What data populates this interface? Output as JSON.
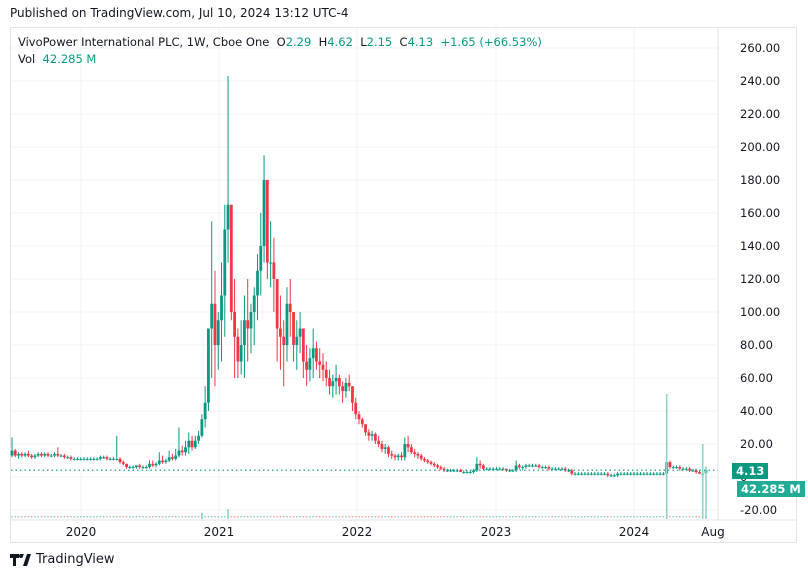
{
  "header": {
    "published": "Published on TradingView.com, Jul 10, 2024 13:12 UTC-4"
  },
  "legend": {
    "symbol": "VivoPower International PLC, 1W, Cboe One",
    "open_label": "O",
    "open": "2.29",
    "high_label": "H",
    "high": "4.62",
    "low_label": "L",
    "low": "2.15",
    "close_label": "C",
    "close": "4.13",
    "change": "+1.65 (+66.53%)",
    "vol_label": "Vol",
    "vol": "42.285 M"
  },
  "price_axis": {
    "labels": [
      "260.00",
      "240.00",
      "220.00",
      "200.00",
      "180.00",
      "160.00",
      "140.00",
      "120.00",
      "100.00",
      "80.00",
      "60.00",
      "40.00",
      "20.00",
      "0",
      "-20.00"
    ],
    "last_price_badge": "4.13",
    "volume_badge": "42.285 M"
  },
  "time_axis": {
    "labels": [
      "2020",
      "2021",
      "2022",
      "2023",
      "2024",
      "Aug"
    ]
  },
  "colors": {
    "up": "#089981",
    "down": "#f23645",
    "volume_up": "#8fd3c8",
    "volume_down": "#f7a9a7",
    "grid": "#f0f3fa",
    "last_price_line": "#089981",
    "volume_badge": "#22ab94"
  },
  "brand": {
    "name": "TradingView"
  },
  "chart_data": {
    "type": "candlestick",
    "title": "VivoPower International PLC, 1W, Cboe One",
    "interval": "1W",
    "xlabel": "",
    "ylabel": "Price",
    "ylim": [
      -20,
      265
    ],
    "yticks": [
      260,
      240,
      220,
      200,
      180,
      160,
      140,
      120,
      100,
      80,
      60,
      40,
      20,
      0,
      -20
    ],
    "xticks": [
      "2020",
      "2021",
      "2022",
      "2023",
      "2024",
      "Aug"
    ],
    "grid": true,
    "last": {
      "open": 2.29,
      "high": 4.62,
      "low": 2.15,
      "close": 4.13,
      "change": 1.65,
      "change_pct": 66.53,
      "volume": "42.285M"
    },
    "series_note": "approximate weekly OHLC read from the chart; x = weeks from start (mid 2019)",
    "candles": [
      [
        13,
        24,
        12,
        16
      ],
      [
        16,
        17,
        12,
        13
      ],
      [
        13,
        15,
        11,
        14
      ],
      [
        14,
        15,
        12,
        13
      ],
      [
        13,
        15,
        12,
        14
      ],
      [
        14,
        16,
        12,
        13
      ],
      [
        13,
        14,
        11,
        12
      ],
      [
        12,
        14,
        11,
        13
      ],
      [
        13,
        15,
        12,
        14
      ],
      [
        14,
        15,
        12,
        13
      ],
      [
        13,
        15,
        12,
        14
      ],
      [
        14,
        15,
        12,
        13
      ],
      [
        13,
        14,
        12,
        13
      ],
      [
        13,
        15,
        12,
        14
      ],
      [
        14,
        18,
        12,
        13
      ],
      [
        13,
        14,
        12,
        13
      ],
      [
        13,
        14,
        11,
        12
      ],
      [
        12,
        13,
        11,
        12
      ],
      [
        12,
        13,
        10,
        11
      ],
      [
        11,
        12,
        10,
        11
      ],
      [
        11,
        12,
        10,
        11
      ],
      [
        11,
        12,
        10,
        11
      ],
      [
        11,
        12,
        10,
        11
      ],
      [
        11,
        12,
        10,
        11
      ],
      [
        11,
        12,
        10,
        11
      ],
      [
        11,
        12,
        10,
        11
      ],
      [
        11,
        12,
        10,
        11
      ],
      [
        11,
        13,
        10,
        12
      ],
      [
        12,
        13,
        11,
        12
      ],
      [
        12,
        13,
        10,
        11
      ],
      [
        11,
        12,
        10,
        11
      ],
      [
        11,
        12,
        10,
        11
      ],
      [
        11,
        25,
        10,
        11
      ],
      [
        11,
        12,
        8,
        9
      ],
      [
        9,
        10,
        7,
        8
      ],
      [
        8,
        8,
        5,
        6
      ],
      [
        6,
        7,
        5,
        6
      ],
      [
        6,
        7,
        5,
        6
      ],
      [
        6,
        7,
        5,
        7
      ],
      [
        7,
        8,
        5,
        6
      ],
      [
        6,
        7,
        5,
        6
      ],
      [
        6,
        7,
        5,
        6
      ],
      [
        6,
        10,
        5,
        8
      ],
      [
        8,
        10,
        6,
        7
      ],
      [
        7,
        9,
        6,
        8
      ],
      [
        8,
        15,
        7,
        10
      ],
      [
        10,
        13,
        8,
        9
      ],
      [
        9,
        11,
        8,
        10
      ],
      [
        10,
        16,
        9,
        12
      ],
      [
        12,
        14,
        10,
        11
      ],
      [
        11,
        17,
        10,
        13
      ],
      [
        13,
        30,
        12,
        16
      ],
      [
        16,
        19,
        13,
        15
      ],
      [
        15,
        22,
        13,
        18
      ],
      [
        18,
        27,
        14,
        22
      ],
      [
        22,
        25,
        16,
        18
      ],
      [
        18,
        25,
        17,
        22
      ],
      [
        22,
        28,
        20,
        25
      ],
      [
        25,
        38,
        24,
        35
      ],
      [
        35,
        55,
        30,
        45
      ],
      [
        45,
        85,
        40,
        90
      ],
      [
        90,
        155,
        60,
        105
      ],
      [
        105,
        125,
        55,
        80
      ],
      [
        80,
        100,
        65,
        95
      ],
      [
        95,
        130,
        70,
        110
      ],
      [
        110,
        165,
        85,
        150
      ],
      [
        150,
        243,
        130,
        165
      ],
      [
        165,
        160,
        95,
        100
      ],
      [
        100,
        120,
        60,
        85
      ],
      [
        85,
        90,
        60,
        70
      ],
      [
        70,
        95,
        62,
        80
      ],
      [
        80,
        110,
        60,
        95
      ],
      [
        95,
        120,
        70,
        90
      ],
      [
        90,
        105,
        75,
        100
      ],
      [
        100,
        115,
        80,
        110
      ],
      [
        110,
        135,
        95,
        125
      ],
      [
        125,
        160,
        110,
        140
      ],
      [
        140,
        195,
        130,
        180
      ],
      [
        180,
        170,
        120,
        130
      ],
      [
        130,
        155,
        115,
        130
      ],
      [
        130,
        145,
        100,
        120
      ],
      [
        120,
        115,
        70,
        90
      ],
      [
        90,
        110,
        65,
        85
      ],
      [
        85,
        95,
        55,
        80
      ],
      [
        80,
        115,
        70,
        105
      ],
      [
        105,
        120,
        85,
        100
      ],
      [
        100,
        90,
        70,
        80
      ],
      [
        80,
        95,
        65,
        85
      ],
      [
        85,
        100,
        75,
        90
      ],
      [
        90,
        85,
        60,
        70
      ],
      [
        70,
        80,
        55,
        65
      ],
      [
        65,
        78,
        58,
        72
      ],
      [
        72,
        90,
        60,
        78
      ],
      [
        78,
        82,
        65,
        70
      ],
      [
        70,
        78,
        60,
        68
      ],
      [
        68,
        75,
        58,
        65
      ],
      [
        65,
        70,
        55,
        60
      ],
      [
        60,
        65,
        50,
        55
      ],
      [
        55,
        62,
        48,
        58
      ],
      [
        58,
        68,
        50,
        60
      ],
      [
        60,
        62,
        50,
        55
      ],
      [
        55,
        58,
        45,
        52
      ],
      [
        52,
        60,
        48,
        57
      ],
      [
        57,
        62,
        52,
        55
      ],
      [
        55,
        55,
        40,
        45
      ],
      [
        45,
        48,
        35,
        38
      ],
      [
        38,
        40,
        32,
        35
      ],
      [
        35,
        36,
        30,
        32
      ],
      [
        32,
        30,
        25,
        27
      ],
      [
        27,
        29,
        22,
        25
      ],
      [
        25,
        28,
        22,
        26
      ],
      [
        26,
        27,
        20,
        22
      ],
      [
        22,
        25,
        18,
        20
      ],
      [
        20,
        22,
        15,
        17
      ],
      [
        17,
        20,
        14,
        18
      ],
      [
        18,
        19,
        12,
        14
      ],
      [
        14,
        16,
        11,
        13
      ],
      [
        13,
        14,
        10,
        12
      ],
      [
        12,
        14,
        10,
        13
      ],
      [
        13,
        15,
        10,
        12
      ],
      [
        12,
        24,
        10,
        20
      ],
      [
        20,
        25,
        15,
        18
      ],
      [
        18,
        20,
        14,
        15
      ],
      [
        15,
        17,
        12,
        14
      ],
      [
        14,
        15,
        11,
        13
      ],
      [
        13,
        14,
        10,
        11
      ],
      [
        11,
        12,
        9,
        10
      ],
      [
        10,
        11,
        8,
        9
      ],
      [
        9,
        10,
        7,
        8
      ],
      [
        8,
        9,
        6,
        7
      ],
      [
        7,
        8,
        5,
        6
      ],
      [
        6,
        7,
        4,
        5
      ],
      [
        5,
        6,
        3,
        4
      ],
      [
        4,
        5,
        3,
        4
      ],
      [
        4,
        5,
        3,
        4
      ],
      [
        4,
        5,
        3,
        4
      ],
      [
        4,
        5,
        3,
        4
      ],
      [
        4,
        5,
        3,
        3
      ],
      [
        3,
        4,
        2,
        3
      ],
      [
        3,
        4,
        2,
        3
      ],
      [
        3,
        4,
        2,
        3
      ],
      [
        3,
        5,
        2,
        4
      ],
      [
        4,
        12,
        3,
        8
      ],
      [
        8,
        10,
        5,
        7
      ],
      [
        7,
        8,
        4,
        5
      ],
      [
        5,
        6,
        4,
        5
      ],
      [
        5,
        6,
        4,
        5
      ],
      [
        5,
        6,
        4,
        5
      ],
      [
        5,
        6,
        4,
        5
      ],
      [
        5,
        6,
        4,
        5
      ],
      [
        5,
        6,
        4,
        5
      ],
      [
        5,
        5,
        3,
        4
      ],
      [
        4,
        5,
        3,
        4
      ],
      [
        4,
        5,
        3,
        4
      ],
      [
        4,
        10,
        3,
        7
      ],
      [
        7,
        8,
        5,
        6
      ],
      [
        6,
        7,
        4,
        6
      ],
      [
        6,
        8,
        5,
        7
      ],
      [
        7,
        8,
        6,
        7
      ],
      [
        7,
        8,
        6,
        7
      ],
      [
        7,
        8,
        6,
        7
      ],
      [
        7,
        8,
        5,
        6
      ],
      [
        6,
        7,
        5,
        6
      ],
      [
        6,
        7,
        5,
        6
      ],
      [
        6,
        7,
        4,
        5
      ],
      [
        5,
        6,
        4,
        5
      ],
      [
        5,
        6,
        4,
        5
      ],
      [
        5,
        6,
        4,
        5
      ],
      [
        5,
        6,
        4,
        5
      ],
      [
        5,
        6,
        3,
        4
      ],
      [
        4,
        5,
        3,
        4
      ],
      [
        4,
        5,
        1,
        2
      ],
      [
        2,
        3,
        1,
        2
      ],
      [
        2,
        3,
        1,
        2
      ],
      [
        2,
        3,
        1,
        2
      ],
      [
        2,
        3,
        1,
        2
      ],
      [
        2,
        3,
        1,
        2
      ],
      [
        2,
        3,
        1,
        2
      ],
      [
        2,
        3,
        1,
        2
      ],
      [
        2,
        3,
        1,
        2
      ],
      [
        2,
        3,
        1,
        2
      ],
      [
        2,
        3,
        1,
        2
      ],
      [
        2,
        3,
        0,
        1
      ],
      [
        1,
        2,
        0,
        1
      ],
      [
        1,
        2,
        0,
        1
      ],
      [
        1,
        3,
        0,
        2
      ],
      [
        2,
        3,
        1,
        2
      ],
      [
        2,
        3,
        1,
        2
      ],
      [
        2,
        3,
        1,
        2
      ],
      [
        2,
        3,
        1,
        2
      ],
      [
        2,
        3,
        1,
        2
      ],
      [
        2,
        3,
        1,
        2
      ],
      [
        2,
        3,
        1,
        2
      ],
      [
        2,
        3,
        1,
        2
      ],
      [
        2,
        3,
        1,
        2
      ],
      [
        2,
        3,
        1,
        2
      ],
      [
        2,
        3,
        1,
        2
      ],
      [
        2,
        3,
        1,
        2
      ],
      [
        2,
        3,
        1,
        2
      ],
      [
        2,
        3,
        1,
        2
      ],
      [
        2,
        13,
        1,
        9
      ],
      [
        9,
        10,
        5,
        6
      ],
      [
        6,
        7,
        5,
        6
      ],
      [
        6,
        7,
        5,
        6
      ],
      [
        6,
        7,
        4,
        5
      ],
      [
        5,
        6,
        4,
        5
      ],
      [
        5,
        6,
        4,
        5
      ],
      [
        5,
        6,
        3,
        4
      ],
      [
        4,
        5,
        3,
        4
      ],
      [
        4,
        5,
        2,
        3
      ],
      [
        3,
        4,
        2,
        2
      ],
      [
        2,
        3,
        1,
        2
      ],
      [
        2.29,
        4.62,
        2.15,
        4.13
      ]
    ],
    "volume_spikes": [
      {
        "x_week": 58,
        "rel": 0.05
      },
      {
        "x_week": 66,
        "rel": 0.08
      },
      {
        "x_week": 200,
        "rel": 1.0
      },
      {
        "x_week": 211,
        "rel": 0.6
      },
      {
        "x_week": 212,
        "rel": 0.42
      }
    ]
  }
}
